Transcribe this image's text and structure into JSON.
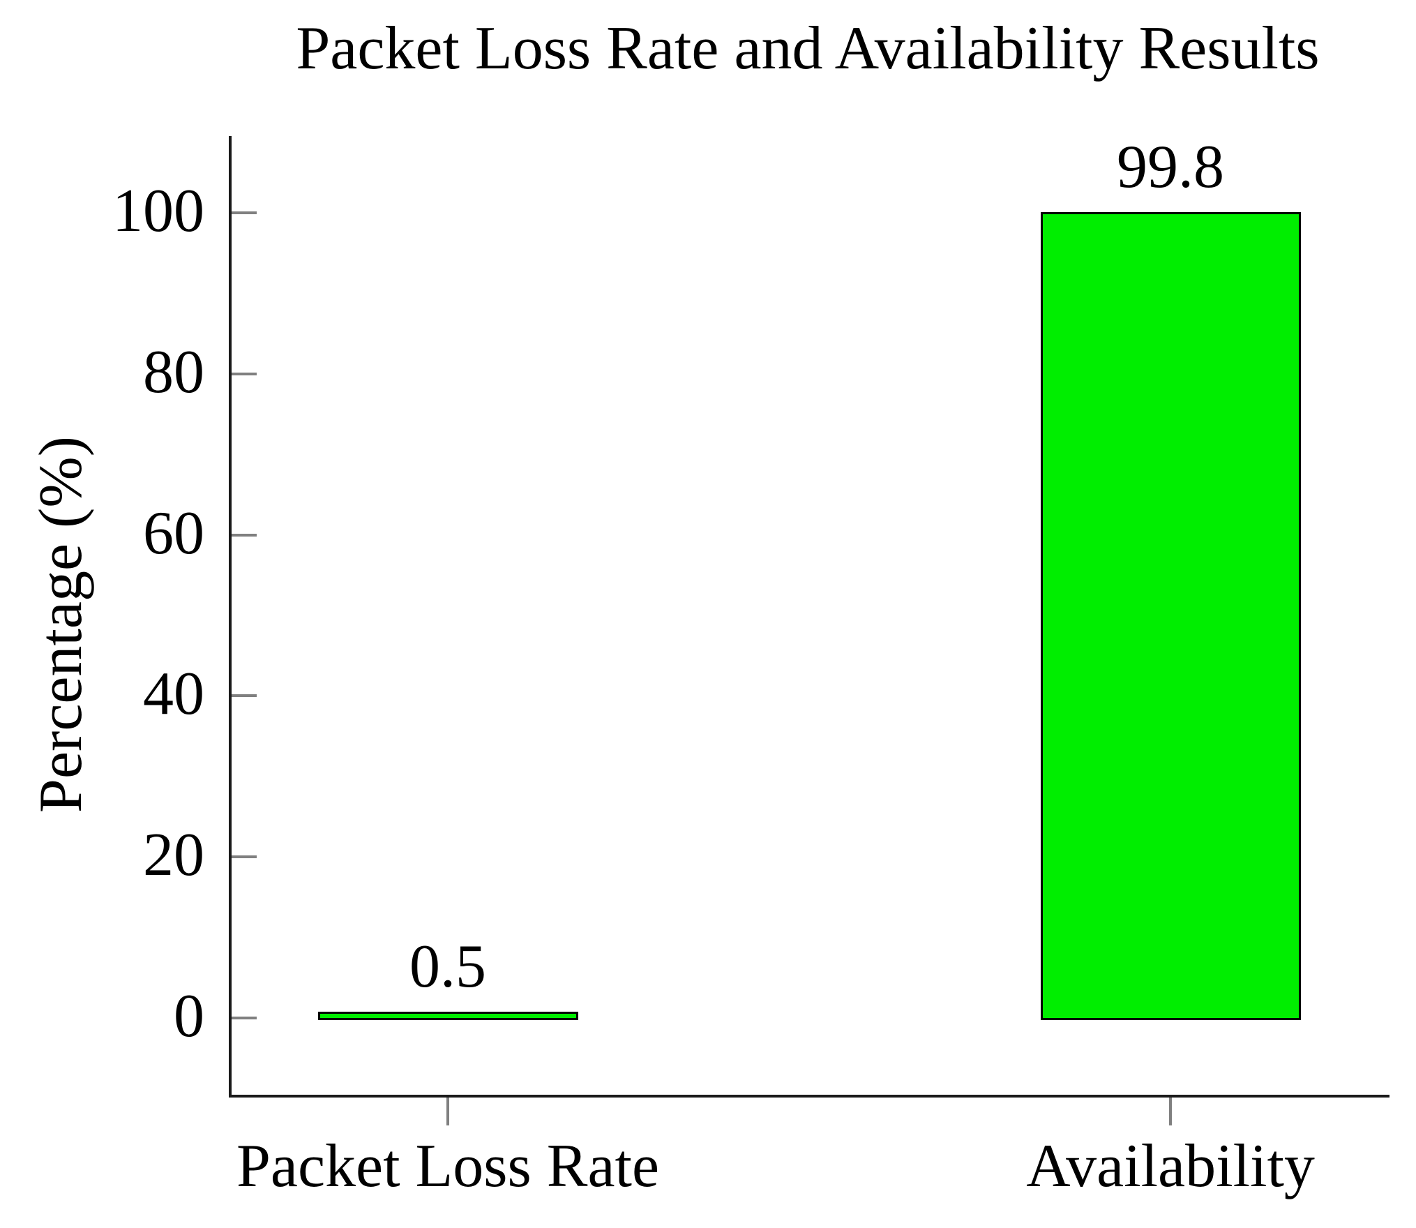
{
  "chart_data": {
    "type": "bar",
    "title": "Packet Loss Rate and Availability Results",
    "ylabel": "Percentage (%)",
    "xlabel": "",
    "categories": [
      "Packet Loss Rate",
      "Availability"
    ],
    "values": [
      0.5,
      99.8
    ],
    "bar_value_labels": [
      "0.5",
      "99.8"
    ],
    "yticks": [
      0,
      20,
      40,
      60,
      80,
      100
    ],
    "ylim": [
      -9.7,
      109.3
    ],
    "grid": false,
    "legend_position": "none",
    "bar_color": "#00ee00",
    "bar_edge_color": "#000000",
    "axis_color": "#1a1a1a",
    "tick_color": "#808080",
    "text_color": "#000000"
  }
}
